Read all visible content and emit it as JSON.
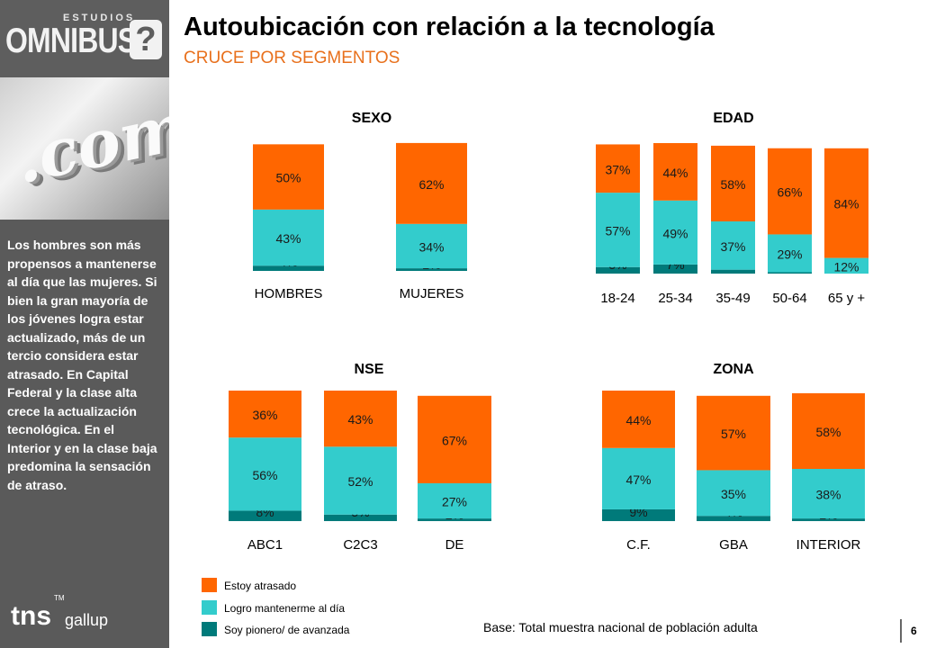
{
  "header": {
    "title": "Autoubicación con relación a la tecnología",
    "subtitle": "CRUCE POR SEGMENTOS"
  },
  "logo": {
    "small": "ESTUDIOS",
    "main": "OMNIBUS",
    "mark": "?"
  },
  "photo": {
    "text": ".com"
  },
  "sidebar": {
    "text": "Los hombres son más propensos a mantenerse al día que las mujeres. Si bien la gran mayoría de los jóvenes logra estar actualizado, más de un tercio considera estar atrasado. En Capital Federal y la clase alta crece la actualización tecnológica. En el Interior y en la clase baja predomina la sensación de atraso."
  },
  "brand": {
    "tns": "tns",
    "gallup": "gallup",
    "tm": "TM"
  },
  "legend": [
    {
      "label": "Estoy atrasado",
      "color": "#ff6600"
    },
    {
      "label": "Logro mantenerme al día",
      "color": "#33cccc"
    },
    {
      "label": "Soy pionero/ de avanzada",
      "color": "#007a7a"
    }
  ],
  "footer": {
    "base": "Base: Total muestra nacional de población adulta",
    "page": "6"
  },
  "chart_data": [
    {
      "type": "bar",
      "stacked": true,
      "title": "SEXO",
      "categories": [
        "HOMBRES",
        "MUJERES"
      ],
      "series": [
        {
          "name": "Soy pionero/ de avanzada",
          "values": [
            4,
            2
          ]
        },
        {
          "name": "Logro mantenerme al día",
          "values": [
            43,
            34
          ]
        },
        {
          "name": "Estoy atrasado",
          "values": [
            50,
            62
          ]
        }
      ]
    },
    {
      "type": "bar",
      "stacked": true,
      "title": "EDAD",
      "categories": [
        "18-24",
        "25-34",
        "35-49",
        "50-64",
        "65 y +"
      ],
      "series": [
        {
          "name": "Soy pionero/ de avanzada",
          "values": [
            5,
            7,
            3,
            1,
            null
          ]
        },
        {
          "name": "Logro mantenerme al día",
          "values": [
            57,
            49,
            37,
            29,
            12
          ]
        },
        {
          "name": "Estoy atrasado",
          "values": [
            37,
            44,
            58,
            66,
            84
          ]
        }
      ]
    },
    {
      "type": "bar",
      "stacked": true,
      "title": "NSE",
      "categories": [
        "ABC1",
        "C2C3",
        "DE"
      ],
      "series": [
        {
          "name": "Soy pionero/ de avanzada",
          "values": [
            8,
            5,
            2
          ]
        },
        {
          "name": "Logro mantenerme al día",
          "values": [
            56,
            52,
            27
          ]
        },
        {
          "name": "Estoy atrasado",
          "values": [
            36,
            43,
            67
          ]
        }
      ]
    },
    {
      "type": "bar",
      "stacked": true,
      "title": "ZONA",
      "categories": [
        "C.F.",
        "GBA",
        "INTERIOR"
      ],
      "series": [
        {
          "name": "Soy pionero/ de avanzada",
          "values": [
            9,
            4,
            2
          ]
        },
        {
          "name": "Logro mantenerme al día",
          "values": [
            47,
            35,
            38
          ]
        },
        {
          "name": "Estoy atrasado",
          "values": [
            44,
            57,
            58
          ]
        }
      ]
    }
  ]
}
